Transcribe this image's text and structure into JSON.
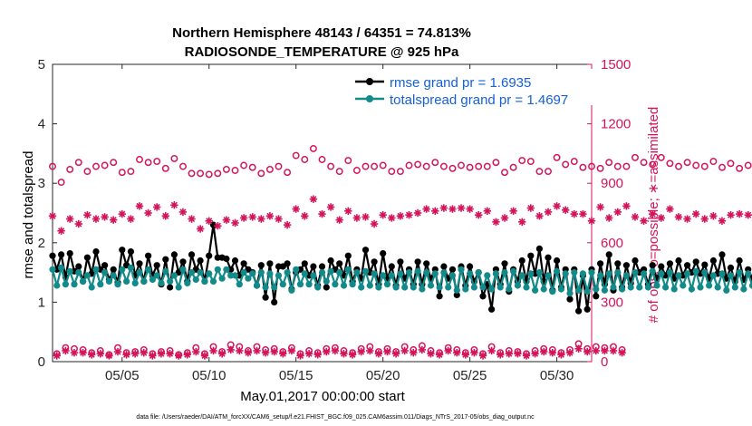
{
  "chart_data": {
    "type": "line",
    "title_line1": "Northern Hemisphere 48143 / 64351 = 74.813%",
    "title_line2": "RADIOSONDE_TEMPERATURE @ 925 hPa",
    "xlabel": "May.01,2017 00:00:00 start",
    "ylabel_left": "rmse and totalspread",
    "ylabel_right": "# of obs: o=possible; ∗=assimilated",
    "footnote": "data file: /Users/raeder/DAI/ATM_forcXX/CAM6_setup/f.e21.FHIST_BGC.f09_025.CAM6assim.011/Diags_NTrS_2017-05/obs_diag_output.nc",
    "xlim": [
      1,
      32
    ],
    "ylim_left": [
      0,
      5
    ],
    "ylim_right": [
      0,
      1500
    ],
    "x_ticks": [
      5,
      10,
      15,
      20,
      25,
      30
    ],
    "x_tick_labels": [
      "05/05",
      "05/10",
      "05/15",
      "05/20",
      "05/25",
      "05/30"
    ],
    "y_left_ticks": [
      0,
      1,
      2,
      3,
      4,
      5
    ],
    "y_left_tick_labels": [
      "0",
      "1",
      "2",
      "3",
      "4",
      "5"
    ],
    "y_right_ticks": [
      0,
      300,
      600,
      900,
      1200,
      1500
    ],
    "y_right_tick_labels": [
      "0",
      "300",
      "600",
      "900",
      "1200",
      "1500"
    ],
    "legend": [
      {
        "name": "rmse grand pr = 1.6935",
        "color": "#000000"
      },
      {
        "name": "totalspread grand pr = 1.4697",
        "color": "#128a8a"
      }
    ],
    "colors": {
      "rmse": "#000000",
      "spread": "#128a8a",
      "obs": "#d4145a",
      "legend_text": "#1560d8"
    },
    "series": [
      {
        "name": "rmse",
        "axis": "left",
        "x_start": 1.0,
        "x_step": 0.25,
        "values": [
          1.78,
          1.55,
          1.8,
          1.42,
          1.82,
          1.52,
          1.6,
          1.35,
          1.75,
          1.48,
          1.85,
          1.55,
          1.62,
          1.38,
          1.55,
          1.33,
          1.88,
          1.62,
          1.85,
          1.45,
          1.65,
          1.35,
          1.78,
          1.45,
          1.62,
          1.3,
          1.72,
          1.25,
          1.8,
          1.5,
          1.68,
          1.35,
          1.8,
          1.55,
          1.7,
          1.35,
          1.78,
          2.3,
          1.75,
          1.75,
          1.73,
          1.55,
          1.7,
          1.45,
          1.65,
          1.55,
          1.5,
          1.28,
          1.62,
          1.08,
          1.65,
          1.0,
          1.6,
          1.6,
          1.65,
          1.22,
          1.5,
          1.55,
          1.65,
          1.45,
          1.6,
          1.28,
          1.6,
          1.25,
          1.7,
          1.55,
          1.65,
          1.45,
          1.78,
          1.35,
          1.55,
          1.4,
          1.88,
          1.5,
          1.68,
          1.3,
          1.82,
          1.4,
          1.6,
          1.28,
          1.68,
          1.4,
          1.55,
          1.3,
          1.68,
          1.3,
          1.65,
          1.4,
          1.55,
          1.1,
          1.6,
          1.4,
          1.55,
          1.12,
          1.6,
          1.28,
          1.6,
          1.35,
          1.5,
          1.1,
          1.3,
          0.88,
          1.55,
          1.3,
          1.65,
          1.18,
          1.55,
          1.35,
          1.7,
          1.35,
          1.78,
          1.48,
          1.9,
          1.35,
          1.75,
          1.2,
          1.7,
          1.25,
          1.55,
          1.05,
          1.55,
          0.85,
          1.45,
          0.88,
          1.55,
          1.1,
          1.65,
          1.3,
          1.8,
          1.2,
          1.65,
          1.25,
          1.62,
          1.32,
          1.7,
          1.5,
          1.55,
          1.3,
          1.62,
          1.4,
          1.6,
          1.45,
          1.65,
          1.4,
          1.7,
          1.45,
          1.62,
          1.5,
          1.68,
          1.48,
          1.63,
          1.4,
          1.7,
          1.48,
          1.8,
          1.4,
          1.58,
          1.35,
          1.7,
          1.38,
          1.55,
          1.4,
          1.58,
          1.35,
          1.68,
          1.5,
          1.62,
          1.55,
          1.68,
          1.55,
          1.6,
          1.25,
          1.65,
          1.55,
          1.65,
          1.35,
          1.75,
          1.45,
          1.65,
          1.52,
          1.55,
          1.2,
          1.58,
          1.25,
          1.55,
          1.2,
          1.52,
          1.28,
          1.68,
          1.55,
          1.6,
          1.5
        ]
      },
      {
        "name": "totalspread",
        "axis": "left",
        "x_start": 1.0,
        "x_step": 0.25,
        "values": [
          1.55,
          1.28,
          1.58,
          1.3,
          1.52,
          1.3,
          1.5,
          1.35,
          1.45,
          1.25,
          1.55,
          1.3,
          1.5,
          1.35,
          1.45,
          1.3,
          1.55,
          1.35,
          1.58,
          1.32,
          1.5,
          1.35,
          1.55,
          1.38,
          1.45,
          1.32,
          1.52,
          1.35,
          1.45,
          1.25,
          1.55,
          1.32,
          1.5,
          1.38,
          1.5,
          1.35,
          1.48,
          1.35,
          1.55,
          1.4,
          1.55,
          1.45,
          1.45,
          1.3,
          1.5,
          1.4,
          1.48,
          1.28,
          1.5,
          1.25,
          1.48,
          1.25,
          1.45,
          1.3,
          1.5,
          1.2,
          1.55,
          1.3,
          1.48,
          1.3,
          1.45,
          1.25,
          1.5,
          1.35,
          1.52,
          1.3,
          1.5,
          1.28,
          1.55,
          1.3,
          1.5,
          1.25,
          1.52,
          1.28,
          1.48,
          1.25,
          1.45,
          1.3,
          1.45,
          1.25,
          1.48,
          1.25,
          1.5,
          1.25,
          1.52,
          1.22,
          1.5,
          1.28,
          1.48,
          1.25,
          1.5,
          1.25,
          1.45,
          1.2,
          1.55,
          1.22,
          1.48,
          1.25,
          1.5,
          1.25,
          1.45,
          1.22,
          1.48,
          1.25,
          1.5,
          1.22,
          1.52,
          1.28,
          1.45,
          1.25,
          1.48,
          1.2,
          1.5,
          1.22,
          1.45,
          1.18,
          1.52,
          1.22,
          1.48,
          1.15,
          1.5,
          1.2,
          1.48,
          1.18,
          1.5,
          1.22,
          1.45,
          1.2,
          1.48,
          1.25,
          1.5,
          1.22,
          1.45,
          1.25,
          1.5,
          1.25,
          1.48,
          1.25,
          1.52,
          1.28,
          1.48,
          1.25,
          1.5,
          1.22,
          1.45,
          1.28,
          1.48,
          1.22,
          1.52,
          1.25,
          1.5,
          1.28,
          1.45,
          1.25,
          1.48,
          1.2,
          1.45,
          1.25,
          1.5,
          1.22,
          1.48,
          1.28,
          1.52,
          1.25,
          1.5,
          1.2,
          1.48,
          1.25,
          1.45,
          1.22,
          1.5,
          1.25,
          1.48,
          1.22,
          1.45,
          1.2,
          1.5,
          1.25,
          1.48,
          1.22,
          1.45,
          1.3,
          1.5,
          1.35,
          1.45,
          1.3,
          1.45,
          1.25,
          1.5,
          1.28,
          1.48,
          1.3,
          1.42,
          1.22
        ]
      },
      {
        "name": "obs possible (00/12Z)",
        "axis": "right",
        "marker": "o",
        "x_start": 1.0,
        "x_step": 0.5,
        "values": [
          985,
          905,
          970,
          1005,
          960,
          985,
          990,
          1005,
          955,
          960,
          1020,
          1005,
          1010,
          975,
          1025,
          985,
          950,
          950,
          945,
          950,
          970,
          965,
          990,
          980,
          950,
          970,
          985,
          955,
          1040,
          1020,
          1075,
          1020,
          985,
          960,
          1015,
          965,
          985,
          985,
          990,
          960,
          960,
          990,
          995,
          985,
          1005,
          985,
          975,
          990,
          980,
          985,
          985,
          1005,
          955,
          980,
          1015,
          1010,
          960,
          960,
          1030,
          995,
          1010,
          980,
          985,
          975,
          1005,
          985,
          985,
          1030,
          1005,
          995,
          1030,
          1000,
          985,
          1005,
          990,
          985,
          1010,
          980,
          1000,
          975,
          990,
          1005,
          1000,
          980,
          985,
          1000,
          1020,
          1005,
          1080,
          1030,
          1015,
          1010,
          1000,
          1010,
          1010
        ]
      },
      {
        "name": "obs assimilated (00/12Z)",
        "axis": "right",
        "marker": "*",
        "x_start": 1.0,
        "x_step": 0.5,
        "values": [
          735,
          660,
          720,
          695,
          740,
          720,
          730,
          715,
          745,
          720,
          785,
          750,
          780,
          735,
          790,
          755,
          720,
          670,
          710,
          685,
          715,
          700,
          725,
          730,
          720,
          735,
          720,
          690,
          770,
          735,
          820,
          745,
          780,
          715,
          760,
          725,
          730,
          695,
          740,
          725,
          735,
          740,
          750,
          770,
          760,
          775,
          770,
          775,
          770,
          740,
          760,
          705,
          725,
          760,
          705,
          775,
          735,
          755,
          785,
          765,
          745,
          745,
          710,
          780,
          725,
          755,
          785,
          730,
          710,
          745,
          725,
          770,
          730,
          720,
          745,
          720,
          735,
          710,
          740,
          745,
          740,
          780,
          745,
          730,
          770,
          760,
          755,
          795,
          805,
          825,
          730,
          790,
          700,
          785,
          705,
          795,
          755,
          780
        ]
      },
      {
        "name": "obs possible (06/18Z)",
        "axis": "right",
        "marker": "o",
        "x_start": 1.25,
        "x_step": 0.5,
        "values": [
          40,
          70,
          65,
          60,
          45,
          55,
          35,
          70,
          45,
          50,
          60,
          40,
          50,
          55,
          35,
          45,
          70,
          40,
          75,
          50,
          85,
          75,
          55,
          75,
          60,
          65,
          50,
          70,
          40,
          55,
          45,
          65,
          70,
          55,
          45,
          65,
          75,
          50,
          65,
          50,
          75,
          60,
          80,
          55,
          45,
          70,
          60,
          45,
          60,
          40,
          75,
          45,
          55,
          50,
          40,
          55,
          65,
          60,
          45,
          60,
          90,
          65,
          75,
          70,
          75,
          60
        ]
      },
      {
        "name": "obs assimilated (06/18Z)",
        "axis": "right",
        "marker": "*",
        "x_start": 1.25,
        "x_step": 0.5,
        "values": [
          30,
          55,
          45,
          45,
          35,
          40,
          30,
          50,
          35,
          40,
          45,
          30,
          40,
          40,
          30,
          35,
          50,
          30,
          55,
          40,
          60,
          55,
          45,
          55,
          45,
          50,
          40,
          55,
          30,
          40,
          35,
          50,
          55,
          40,
          35,
          50,
          55,
          40,
          50,
          40,
          55,
          45,
          60,
          40,
          35,
          55,
          45,
          35,
          45,
          30,
          55,
          35,
          40,
          40,
          30,
          40,
          50,
          45,
          35,
          45,
          65,
          50,
          55,
          55,
          55,
          45
        ]
      }
    ]
  }
}
